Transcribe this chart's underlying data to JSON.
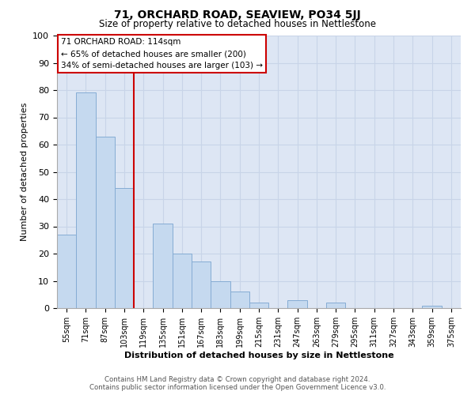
{
  "title_line1": "71, ORCHARD ROAD, SEAVIEW, PO34 5JJ",
  "title_line2": "Size of property relative to detached houses in Nettlestone",
  "xlabel": "Distribution of detached houses by size in Nettlestone",
  "ylabel": "Number of detached properties",
  "footer_line1": "Contains HM Land Registry data © Crown copyright and database right 2024.",
  "footer_line2": "Contains public sector information licensed under the Open Government Licence v3.0.",
  "bar_labels": [
    "55sqm",
    "71sqm",
    "87sqm",
    "103sqm",
    "119sqm",
    "135sqm",
    "151sqm",
    "167sqm",
    "183sqm",
    "199sqm",
    "215sqm",
    "231sqm",
    "247sqm",
    "263sqm",
    "279sqm",
    "295sqm",
    "311sqm",
    "327sqm",
    "343sqm",
    "359sqm",
    "375sqm"
  ],
  "bar_values": [
    27,
    79,
    63,
    44,
    0,
    31,
    20,
    17,
    10,
    6,
    2,
    0,
    3,
    0,
    2,
    0,
    0,
    0,
    0,
    1,
    0
  ],
  "bar_color": "#c5d9ef",
  "bar_edge_color": "#85acd4",
  "vline_x": 3.5,
  "vline_color": "#cc0000",
  "annotation_title": "71 ORCHARD ROAD: 114sqm",
  "annotation_line2": "← 65% of detached houses are smaller (200)",
  "annotation_line3": "34% of semi-detached houses are larger (103) →",
  "annotation_box_color": "white",
  "annotation_box_edge_color": "#cc0000",
  "ylim": [
    0,
    100
  ],
  "yticks": [
    0,
    10,
    20,
    30,
    40,
    50,
    60,
    70,
    80,
    90,
    100
  ],
  "grid_color": "#c8d4e8",
  "bg_color": "#dde6f4"
}
